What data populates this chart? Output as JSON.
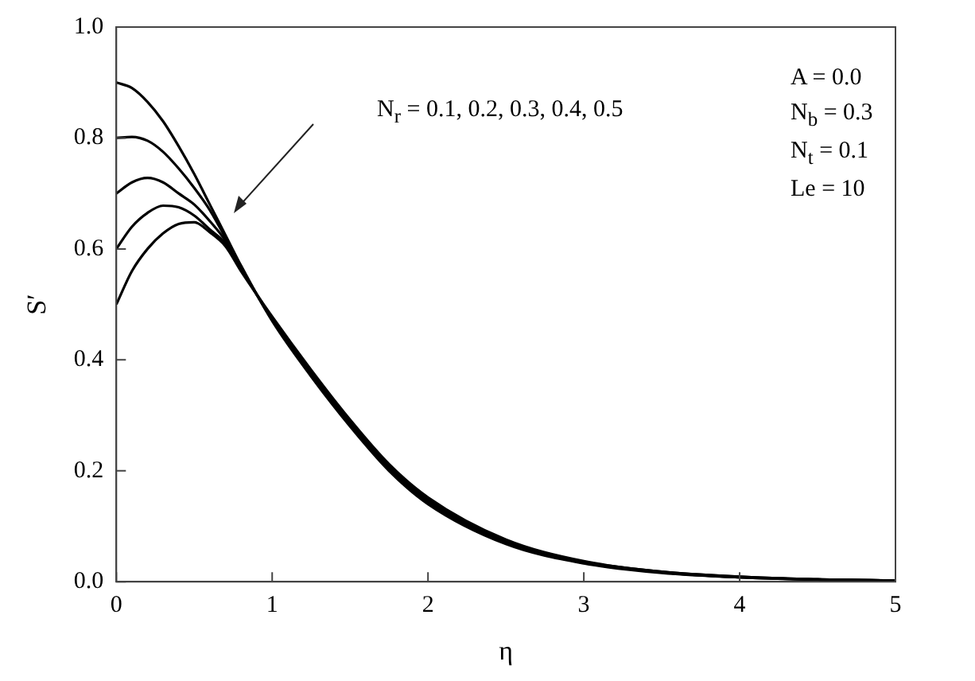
{
  "chart_data": {
    "type": "line",
    "xlabel": "η",
    "ylabel": "S′",
    "x": [
      0,
      0.1,
      0.2,
      0.3,
      0.4,
      0.5,
      0.6,
      0.7,
      0.8,
      1.0,
      1.25,
      1.5,
      1.75,
      2,
      2.5,
      3,
      3.5,
      4,
      4.5,
      5
    ],
    "series": [
      {
        "color": "#000000",
        "values": [
          0.9,
          0.89,
          0.865,
          0.83,
          0.785,
          0.735,
          0.68,
          0.625,
          0.57,
          0.47,
          0.37,
          0.28,
          0.2,
          0.14,
          0.068,
          0.033,
          0.016,
          0.008,
          0.004,
          0.002
        ]
      },
      {
        "color": "#000000",
        "values": [
          0.8,
          0.802,
          0.795,
          0.775,
          0.745,
          0.71,
          0.67,
          0.62,
          0.567,
          0.472,
          0.373,
          0.283,
          0.203,
          0.143,
          0.07,
          0.034,
          0.017,
          0.008,
          0.004,
          0.002
        ]
      },
      {
        "color": "#000000",
        "values": [
          0.7,
          0.72,
          0.728,
          0.72,
          0.7,
          0.68,
          0.65,
          0.615,
          0.565,
          0.474,
          0.376,
          0.286,
          0.206,
          0.146,
          0.072,
          0.035,
          0.017,
          0.008,
          0.004,
          0.002
        ]
      },
      {
        "color": "#000000",
        "values": [
          0.6,
          0.64,
          0.665,
          0.678,
          0.675,
          0.66,
          0.635,
          0.61,
          0.563,
          0.476,
          0.379,
          0.289,
          0.209,
          0.149,
          0.074,
          0.036,
          0.018,
          0.009,
          0.004,
          0.002
        ]
      },
      {
        "color": "#000000",
        "values": [
          0.5,
          0.56,
          0.6,
          0.628,
          0.645,
          0.648,
          0.63,
          0.605,
          0.56,
          0.478,
          0.382,
          0.292,
          0.212,
          0.152,
          0.076,
          0.037,
          0.018,
          0.009,
          0.004,
          0.002
        ]
      }
    ],
    "xlim": [
      0,
      5
    ],
    "xticks": [
      0,
      1,
      2,
      3,
      4,
      5
    ],
    "ylim": [
      0,
      1
    ],
    "yticks": [
      {
        "value": 0,
        "label": "0.0"
      },
      {
        "value": 0.2,
        "label": "0.2"
      },
      {
        "value": 0.4,
        "label": "0.4"
      },
      {
        "value": 0.6,
        "label": "0.6"
      },
      {
        "value": 0.8,
        "label": "0.8"
      },
      {
        "value": 1,
        "label": "1.0"
      }
    ],
    "annotations": [
      "N$_{r}$ = 0.1, 0.2, 0.3, 0.4, 0.5",
      "A = 0.0",
      "N$_{b}$ = 0.3",
      "N$_{t}$ = 0.1",
      "Le = 10"
    ],
    "grid": false,
    "legend": false,
    "marker": "none",
    "line_style": "solid"
  }
}
